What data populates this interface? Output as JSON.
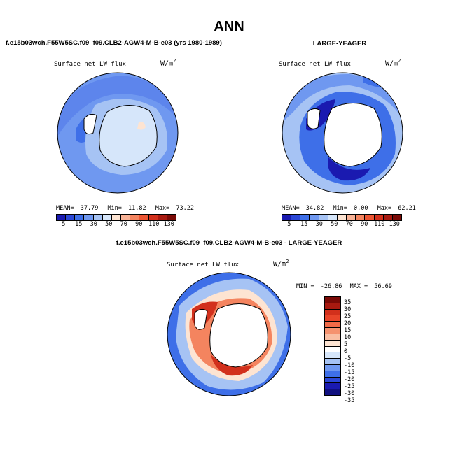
{
  "title": "ANN",
  "panel1": {
    "case": "f.e15b03wch.F55W5SC.f09_f09.CLB2-AGW4-M-B-e03 (yrs 1980-1989)",
    "variable": "Surface net LW flux",
    "units_base": "W/m",
    "units_exp": "2",
    "mean_label": "MEAN=",
    "mean": "37.79",
    "min_label": "Min=",
    "min": "11.82",
    "max_label": "Max=",
    "max": "73.22"
  },
  "panel2": {
    "case": "LARGE-YEAGER",
    "variable": "Surface net LW flux",
    "units_base": "W/m",
    "units_exp": "2",
    "mean_label": "MEAN=",
    "mean": "34.82",
    "min_label": "Min=",
    "min": "0.00",
    "max_label": "Max=",
    "max": "62.21"
  },
  "colorbar_abs": {
    "labels": [
      "5",
      "15",
      "30",
      "50",
      "70",
      "90",
      "110",
      "130"
    ],
    "colors": [
      "#1a1ab0",
      "#2b47d6",
      "#3e6fe8",
      "#6f98f0",
      "#a6c3f4",
      "#d6e6fa",
      "#fde4d2",
      "#f8b296",
      "#f4845f",
      "#ec5533",
      "#d2301c",
      "#a81a10",
      "#7a0a06"
    ]
  },
  "difference": {
    "case": "f.e15b03wch.F55W5SC.f09_f09.CLB2-AGW4-M-B-e03 - LARGE-YEAGER",
    "variable": "Surface net LW flux",
    "units_base": "W/m",
    "units_exp": "2",
    "min_label": "MIN =",
    "min": "-26.86",
    "max_label": "MAX =",
    "max": "56.69",
    "colorbar_labels": [
      "35",
      "30",
      "25",
      "20",
      "15",
      "10",
      "5",
      "0",
      "-5",
      "-10",
      "-15",
      "-20",
      "-25",
      "-30",
      "-35"
    ],
    "colorbar_colors": [
      "#7a0a06",
      "#a81a10",
      "#d2301c",
      "#e8452a",
      "#f06a48",
      "#f5926f",
      "#f9bea3",
      "#fde4d2",
      "#ffffff",
      "#d6e6fa",
      "#a6c3f4",
      "#6f98f0",
      "#3e6fe8",
      "#2b47d6",
      "#1a1ab0",
      "#101080"
    ]
  },
  "colors": {
    "land": "#ffffff",
    "coast": "#000000"
  }
}
